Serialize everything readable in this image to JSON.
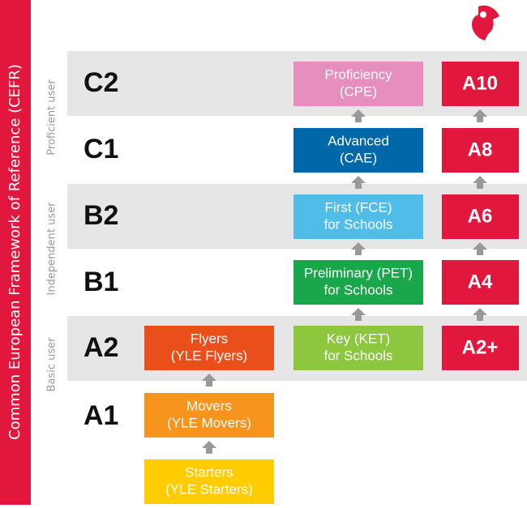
{
  "sidebar_title": "Common European Framework of Reference (CEFR)",
  "groups": [
    "Proficient user",
    "Independent user",
    "Basic user"
  ],
  "levels": [
    "C2",
    "C1",
    "B2",
    "B1",
    "A2",
    "A1"
  ],
  "young_learners": [
    {
      "line1": "Flyers",
      "line2": "(YLE Flyers)"
    },
    {
      "line1": "Movers",
      "line2": "(YLE Movers)"
    },
    {
      "line1": "Starters",
      "line2": "(YLE Starters)"
    }
  ],
  "schools": [
    {
      "line1": "Proficiency",
      "line2": "(CPE)"
    },
    {
      "line1": "Advanced",
      "line2": "(CAE)"
    },
    {
      "line1": "First (FCE)",
      "line2": "for Schools"
    },
    {
      "line1": "Preliminary (PET)",
      "line2": "for Schools"
    },
    {
      "line1": "Key (KET)",
      "line2": "for Schools"
    }
  ],
  "scale": [
    "A10",
    "A8",
    "A6",
    "A4",
    "A2+"
  ]
}
